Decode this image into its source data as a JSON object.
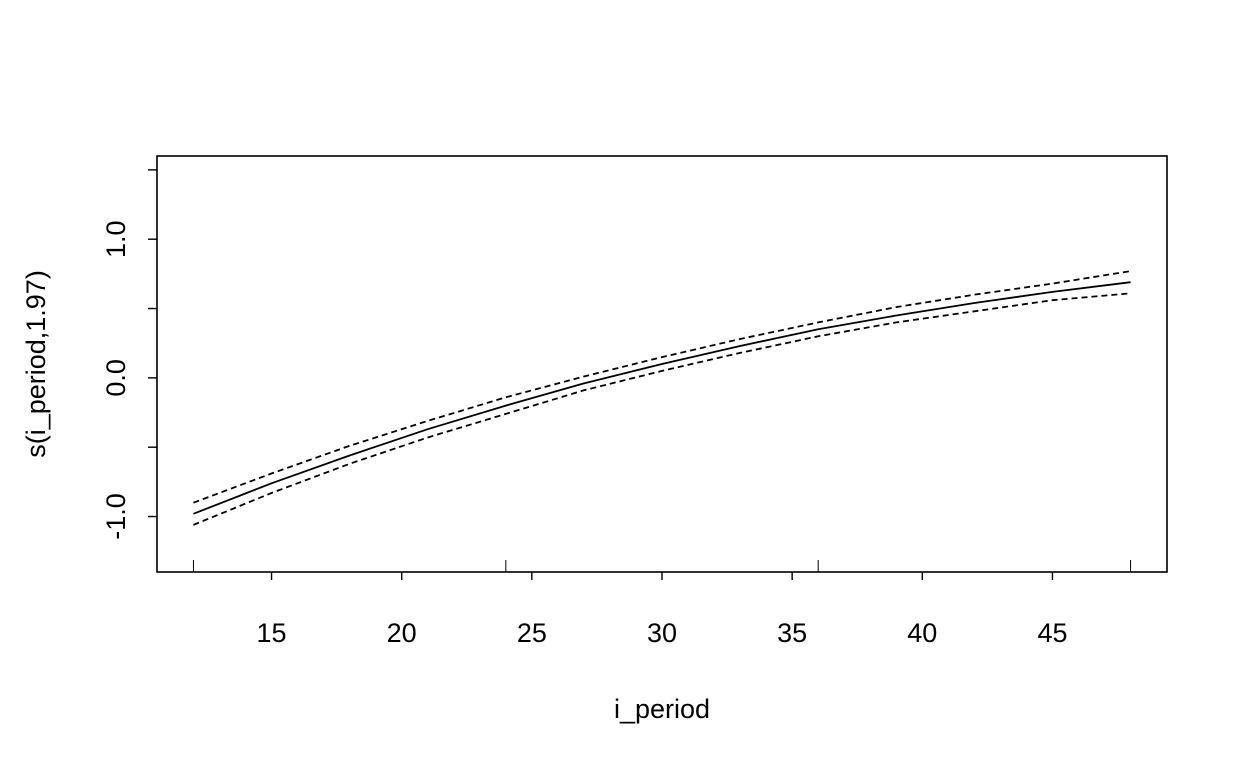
{
  "chart_data": {
    "type": "line",
    "title": "",
    "xlabel": "i_period",
    "ylabel": "s(i_period,1.97)",
    "xlim": [
      10.6,
      49.4
    ],
    "ylim": [
      -1.4,
      1.6
    ],
    "x_ticks": [
      15,
      20,
      25,
      30,
      35,
      40,
      45
    ],
    "y_ticks": [
      -1.0,
      0.0,
      1.0
    ],
    "y_tick_labels": [
      "-1.0",
      "0.0",
      "1.0"
    ],
    "y_minor_ticks": [
      -0.5,
      0.5,
      1.5
    ],
    "rug": [
      12,
      24,
      36,
      48
    ],
    "grid": false,
    "series": [
      {
        "role": "estimate",
        "style": "solid",
        "x": [
          12,
          15,
          18,
          21,
          24,
          27,
          30,
          33,
          36,
          39,
          42,
          45,
          48
        ],
        "y": [
          -0.98,
          -0.76,
          -0.56,
          -0.37,
          -0.2,
          -0.04,
          0.1,
          0.23,
          0.35,
          0.45,
          0.54,
          0.62,
          0.69
        ]
      },
      {
        "role": "upper-band",
        "style": "dashed",
        "x": [
          12,
          15,
          18,
          21,
          24,
          27,
          30,
          33,
          36,
          39,
          42,
          45,
          48
        ],
        "y": [
          -0.9,
          -0.69,
          -0.49,
          -0.31,
          -0.14,
          0.01,
          0.15,
          0.28,
          0.4,
          0.51,
          0.6,
          0.68,
          0.77
        ]
      },
      {
        "role": "lower-band",
        "style": "dashed",
        "x": [
          12,
          15,
          18,
          21,
          24,
          27,
          30,
          33,
          36,
          39,
          42,
          45,
          48
        ],
        "y": [
          -1.06,
          -0.83,
          -0.62,
          -0.43,
          -0.26,
          -0.09,
          0.05,
          0.18,
          0.3,
          0.4,
          0.48,
          0.56,
          0.61
        ]
      }
    ]
  }
}
